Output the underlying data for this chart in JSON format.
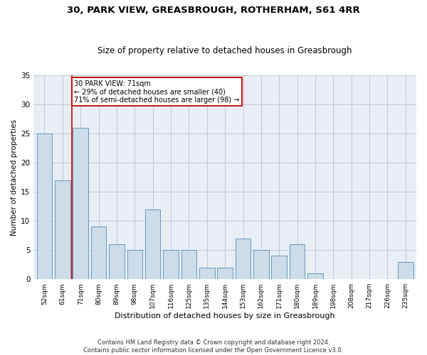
{
  "title1": "30, PARK VIEW, GREASBROUGH, ROTHERHAM, S61 4RR",
  "title2": "Size of property relative to detached houses in Greasbrough",
  "xlabel": "Distribution of detached houses by size in Greasbrough",
  "ylabel": "Number of detached properties",
  "categories": [
    "52sqm",
    "61sqm",
    "71sqm",
    "80sqm",
    "89sqm",
    "98sqm",
    "107sqm",
    "116sqm",
    "125sqm",
    "135sqm",
    "144sqm",
    "153sqm",
    "162sqm",
    "171sqm",
    "180sqm",
    "189sqm",
    "198sqm",
    "208sqm",
    "217sqm",
    "226sqm",
    "235sqm"
  ],
  "values": [
    25,
    17,
    26,
    9,
    6,
    5,
    12,
    5,
    5,
    2,
    2,
    7,
    5,
    4,
    6,
    1,
    0,
    0,
    0,
    0,
    3
  ],
  "bar_color": "#ccdce8",
  "bar_edge_color": "#6699bb",
  "highlight_index": 2,
  "highlight_line_color": "#cc0000",
  "annotation_text": "30 PARK VIEW: 71sqm\n← 29% of detached houses are smaller (40)\n71% of semi-detached houses are larger (98) →",
  "annotation_box_color": "#ffffff",
  "annotation_box_edge_color": "#cc0000",
  "ylim": [
    0,
    35
  ],
  "yticks": [
    0,
    5,
    10,
    15,
    20,
    25,
    30,
    35
  ],
  "background_color": "#e8eef4",
  "footer_text": "Contains HM Land Registry data © Crown copyright and database right 2024.\nContains public sector information licensed under the Open Government Licence v3.0."
}
